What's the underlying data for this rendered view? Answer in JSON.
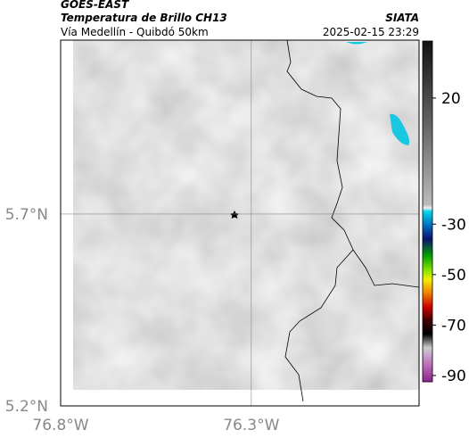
{
  "header": {
    "title": "GOES-EAST",
    "subtitle": "Temperatura de Brillo CH13",
    "region": "Vía Medellín - Quibdó 50km",
    "source": "SIATA",
    "timestamp": "2025-02-15 23:29"
  },
  "map": {
    "lonlim": [
      -76.8,
      -75.86
    ],
    "latlim": [
      5.2,
      6.153
    ],
    "lonticks": [
      {
        "value": -76.8,
        "label": "76.8°W"
      },
      {
        "value": -76.3,
        "label": "76.3°W"
      }
    ],
    "latticks": [
      {
        "value": 5.7,
        "label": "5.7°N"
      },
      {
        "value": 5.2,
        "label": "5.2°N"
      }
    ],
    "colorbar": {
      "lim": [
        -92.5,
        42.6
      ],
      "ticks": [
        20,
        -30,
        -50,
        -70,
        -90
      ]
    }
  }
}
